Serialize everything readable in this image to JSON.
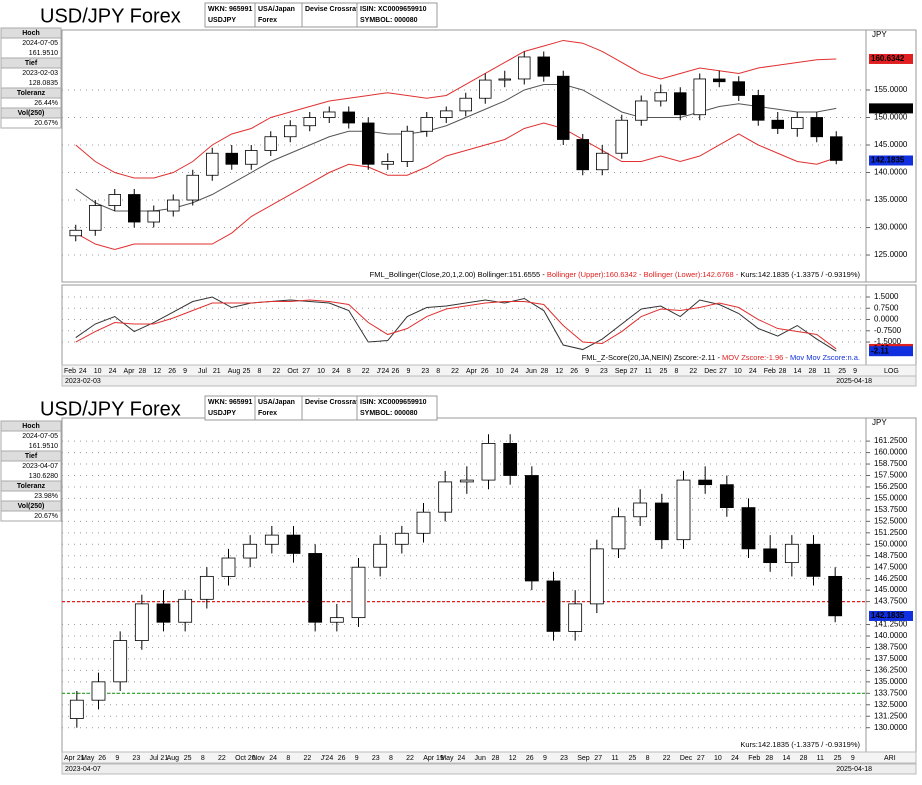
{
  "chart_data": [
    {
      "type": "candlestick",
      "header": {
        "title": "USD/JPY Forex",
        "cells": [
          [
            "WKN: 965991",
            "USDJPY"
          ],
          [
            "USA/Japan",
            "Forex"
          ],
          [
            "Devise Crossrate"
          ],
          [
            "ISIN: XC0009659910",
            "SYMBOL: 000080"
          ]
        ]
      },
      "info": [
        {
          "label": "Hoch",
          "values": [
            "2024-07-05",
            "161.9510"
          ]
        },
        {
          "label": "Tief",
          "values": [
            "2023-02-03",
            "128.0835"
          ]
        },
        {
          "label": "Toleranz",
          "values": [
            "26.44%"
          ]
        },
        {
          "label": "Vol(250)",
          "values": [
            "20.67%"
          ]
        }
      ],
      "unit": "JPY",
      "ylim": [
        120.1,
        165.9
      ],
      "yticks": [
        {
          "value": 125,
          "label": "125.0000"
        },
        {
          "value": 130,
          "label": "130.0000"
        },
        {
          "value": 135,
          "label": "135.0000"
        },
        {
          "value": 140,
          "label": "140.0000"
        },
        {
          "value": 145,
          "label": "145.0000"
        },
        {
          "value": 150,
          "label": "150.0000"
        },
        {
          "value": 155,
          "label": "155.0000"
        }
      ],
      "grid": true,
      "ohlc": [
        [
          128.5,
          130.5,
          127.5,
          129.5
        ],
        [
          129.5,
          135,
          128.5,
          134
        ],
        [
          134,
          137,
          133,
          136
        ],
        [
          136,
          137,
          130,
          131
        ],
        [
          131,
          134,
          130,
          133
        ],
        [
          133,
          136,
          132,
          135
        ],
        [
          135,
          140.5,
          134,
          139.5
        ],
        [
          139.5,
          144.5,
          138.5,
          143.5
        ],
        [
          143.5,
          145,
          140.5,
          141.5
        ],
        [
          141.5,
          145,
          140.5,
          144
        ],
        [
          144,
          147.5,
          143,
          146.5
        ],
        [
          146.5,
          149.5,
          145.5,
          148.5
        ],
        [
          148.5,
          151,
          147.5,
          150
        ],
        [
          150,
          152,
          149,
          151
        ],
        [
          151,
          152,
          148,
          149
        ],
        [
          149,
          150,
          140.5,
          141.5
        ],
        [
          141.5,
          143.5,
          140.5,
          142
        ],
        [
          142,
          148.5,
          141,
          147.5
        ],
        [
          147.5,
          151,
          146.5,
          150
        ],
        [
          150,
          152,
          149,
          151.2
        ],
        [
          151.2,
          154.5,
          150.2,
          153.5
        ],
        [
          153.5,
          158,
          152.5,
          156.8
        ],
        [
          156.8,
          158.5,
          155.5,
          157
        ],
        [
          157,
          162,
          156,
          161
        ],
        [
          161,
          162,
          156.5,
          157.5
        ],
        [
          157.5,
          158.5,
          145,
          146
        ],
        [
          146,
          147,
          139.5,
          140.5
        ],
        [
          140.5,
          145,
          139.5,
          143.5
        ],
        [
          143.5,
          150.5,
          142.5,
          149.5
        ],
        [
          149.5,
          154,
          148.5,
          153
        ],
        [
          153,
          156,
          152,
          154.5
        ],
        [
          154.5,
          155.5,
          149.5,
          150.5
        ],
        [
          150.5,
          158,
          149.5,
          157
        ],
        [
          157,
          158.5,
          155.5,
          156.5
        ],
        [
          156.5,
          157.5,
          153,
          154
        ],
        [
          154,
          155,
          148.5,
          149.5
        ],
        [
          149.5,
          151,
          147,
          148
        ],
        [
          148,
          151,
          146.5,
          150
        ],
        [
          150,
          151,
          145.5,
          146.5
        ],
        [
          146.5,
          147.5,
          141.5,
          142.2
        ]
      ],
      "series": [
        {
          "name": "Bollinger",
          "color": "#555555",
          "values": [
            137,
            134.5,
            133,
            133,
            133,
            133.5,
            134.5,
            136,
            138,
            140,
            142,
            143.5,
            145,
            146.5,
            147.5,
            147.5,
            147,
            147,
            147.5,
            148.5,
            150,
            151.5,
            153,
            155,
            156,
            156,
            155,
            153,
            151,
            150,
            150,
            150,
            151,
            152,
            152.5,
            152,
            151.5,
            151,
            151,
            151.66
          ]
        },
        {
          "name": "Bollinger (Upper)",
          "color": "#e03030",
          "values": [
            145,
            142,
            140,
            139,
            139,
            140,
            142,
            145,
            147,
            148,
            150,
            151,
            152,
            153,
            153.5,
            154,
            154.5,
            154,
            153.5,
            154,
            156,
            158,
            160,
            162,
            163,
            164,
            163.5,
            162,
            160,
            158,
            157,
            158,
            159,
            158.5,
            158,
            159,
            159.5,
            160,
            160.5,
            160.63
          ]
        },
        {
          "name": "Bollinger (Lower)",
          "color": "#e03030",
          "values": [
            129,
            127,
            126,
            127,
            127,
            127,
            127,
            127,
            129,
            132,
            134,
            136,
            138,
            140,
            141.5,
            141,
            139.5,
            139.5,
            141,
            143,
            144,
            145,
            146,
            148,
            149,
            148,
            146,
            144,
            142,
            142,
            143,
            142,
            143,
            145,
            147,
            145,
            143.5,
            142,
            141.5,
            142.68
          ]
        }
      ],
      "price_tags": [
        {
          "value": 160.6342,
          "color": "#e02020",
          "text_color": "#ffffff"
        },
        {
          "value": 151.6555,
          "color": "#000000",
          "text_color": "#ffffff"
        },
        {
          "value": 142.1835,
          "color": "#1030e0",
          "text_color": "#ffffff"
        }
      ],
      "status": [
        {
          "text": "FML_Bollinger(Close,20,1,2.00) Bollinger:151.6555 - ",
          "color": "#000000"
        },
        {
          "text": "Bollinger (Upper):160.6342 - ",
          "color": "#e02020"
        },
        {
          "text": "Bollinger (Lower):142.6768 - ",
          "color": "#e02020"
        },
        {
          "text": "Kurs:142.1835 (-1.3375 / -0.9319%)",
          "color": "#000000"
        }
      ]
    },
    {
      "type": "line",
      "ylim": [
        -3.03,
        2.3
      ],
      "yticks": [
        {
          "value": 1.5,
          "label": "1.5000"
        },
        {
          "value": 0.75,
          "label": "0.7500"
        },
        {
          "value": 0,
          "label": "0.0000"
        },
        {
          "value": -0.75,
          "label": "-0.7500"
        },
        {
          "value": -1.5,
          "label": "-1.5000"
        }
      ],
      "grid": true,
      "series": [
        {
          "name": "Zscore",
          "color": "#333333",
          "values": [
            -1.2,
            -0.3,
            0.2,
            -0.8,
            -0.2,
            0.5,
            1.2,
            1.5,
            0.8,
            1.1,
            1.2,
            1.3,
            1.2,
            1.1,
            0.6,
            -1.5,
            -1.4,
            0.2,
            0.8,
            0.9,
            1.1,
            1.3,
            1.1,
            1.4,
            0.6,
            -1.7,
            -2.0,
            -1.3,
            -0.3,
            0.7,
            0.9,
            0.2,
            1.3,
            1.0,
            0.4,
            -0.6,
            -1.1,
            -0.4,
            -1.3,
            -2.11
          ]
        },
        {
          "name": "MOV Zscore",
          "color": "#e03030",
          "values": [
            -1.5,
            -0.8,
            -0.2,
            -0.3,
            -0.3,
            0.1,
            0.6,
            1.1,
            1.1,
            1.1,
            1.2,
            1.2,
            1.3,
            1.2,
            1.0,
            -0.2,
            -1.0,
            -0.6,
            0.2,
            0.7,
            0.9,
            1.1,
            1.2,
            1.2,
            1.0,
            -0.4,
            -1.5,
            -1.6,
            -0.8,
            0.2,
            0.7,
            0.6,
            0.8,
            1.1,
            0.8,
            0.0,
            -0.6,
            -0.8,
            -1.0,
            -1.96
          ]
        }
      ],
      "price_tags": [
        {
          "value": -1.96,
          "color": "#e02020",
          "text_color": "#ffffff"
        },
        {
          "value": -2.11,
          "color": "#1030e0",
          "text_color": "#ffffff"
        }
      ],
      "status": [
        {
          "text": "FML_Z-Score(20,JA,NEIN) Zscore:-2.11 - ",
          "color": "#000000"
        },
        {
          "text": "MOV Zscore:-1.96 - ",
          "color": "#e02020"
        },
        {
          "text": "Mov Mov Zscore:n.a.",
          "color": "#1030e0"
        }
      ],
      "x_labels": [
        "Feb",
        "24",
        "10",
        "24",
        "Apr",
        "28",
        "12",
        "26",
        "9",
        "Jul",
        "21",
        "Aug",
        "25",
        "8",
        "22",
        "Oct",
        "27",
        "10",
        "24",
        "8",
        "22",
        "J'24",
        "26",
        "9",
        "23",
        "8",
        "22",
        "Apr",
        "26",
        "10",
        "24",
        "Jun",
        "28",
        "12",
        "26",
        "9",
        "23",
        "Sep",
        "27",
        "11",
        "25",
        "8",
        "22",
        "Dec",
        "27",
        "10",
        "24",
        "Feb",
        "28",
        "14",
        "28",
        "11",
        "25",
        "9"
      ],
      "range": [
        "2023-02-03",
        "2025-04-18"
      ],
      "scale_mode": "LOG"
    },
    {
      "type": "candlestick",
      "header": {
        "title": "USD/JPY Forex",
        "cells": [
          [
            "WKN: 965991",
            "USDJPY"
          ],
          [
            "USA/Japan",
            "Forex"
          ],
          [
            "Devise Crossrate"
          ],
          [
            "ISIN: XC0009659910",
            "SYMBOL: 000080"
          ]
        ]
      },
      "info": [
        {
          "label": "Hoch",
          "values": [
            "2024-07-05",
            "161.9510"
          ]
        },
        {
          "label": "Tief",
          "values": [
            "2023-04-07",
            "130.6280"
          ]
        },
        {
          "label": "Toleranz",
          "values": [
            "23.98%"
          ]
        },
        {
          "label": "Vol(250)",
          "values": [
            "20.67%"
          ]
        }
      ],
      "unit": "JPY",
      "ylim": [
        127.35,
        163.77
      ],
      "yticks": [
        {
          "value": 130,
          "label": "130.0000"
        },
        {
          "value": 131.25,
          "label": "131.2500"
        },
        {
          "value": 132.5,
          "label": "132.5000"
        },
        {
          "value": 133.75,
          "label": "133.7500"
        },
        {
          "value": 135,
          "label": "135.0000"
        },
        {
          "value": 136.25,
          "label": "136.2500"
        },
        {
          "value": 137.5,
          "label": "137.5000"
        },
        {
          "value": 138.75,
          "label": "138.7500"
        },
        {
          "value": 140,
          "label": "140.0000"
        },
        {
          "value": 141.25,
          "label": "141.2500"
        },
        {
          "value": 143.75,
          "label": "143.7500"
        },
        {
          "value": 145,
          "label": "145.0000"
        },
        {
          "value": 146.25,
          "label": "146.2500"
        },
        {
          "value": 147.5,
          "label": "147.5000"
        },
        {
          "value": 148.75,
          "label": "148.7500"
        },
        {
          "value": 150,
          "label": "150.0000"
        },
        {
          "value": 151.25,
          "label": "151.2500"
        },
        {
          "value": 152.5,
          "label": "152.5000"
        },
        {
          "value": 153.75,
          "label": "153.7500"
        },
        {
          "value": 155,
          "label": "155.0000"
        },
        {
          "value": 156.25,
          "label": "156.2500"
        },
        {
          "value": 157.5,
          "label": "157.5000"
        },
        {
          "value": 158.75,
          "label": "158.7500"
        },
        {
          "value": 160,
          "label": "160.0000"
        },
        {
          "value": 161.25,
          "label": "161.2500"
        }
      ],
      "grid": true,
      "ohlc": [
        [
          131,
          134,
          130,
          133
        ],
        [
          133,
          136,
          132,
          135
        ],
        [
          135,
          140.5,
          134,
          139.5
        ],
        [
          139.5,
          144.5,
          138.5,
          143.5
        ],
        [
          143.5,
          145,
          140.5,
          141.5
        ],
        [
          141.5,
          145,
          140.5,
          144
        ],
        [
          144,
          147.5,
          143,
          146.5
        ],
        [
          146.5,
          149.5,
          145.5,
          148.5
        ],
        [
          148.5,
          151,
          147.5,
          150
        ],
        [
          150,
          152,
          149,
          151
        ],
        [
          151,
          152,
          148,
          149
        ],
        [
          149,
          150,
          140.5,
          141.5
        ],
        [
          141.5,
          143.5,
          140.5,
          142
        ],
        [
          142,
          148.5,
          141,
          147.5
        ],
        [
          147.5,
          151,
          146.5,
          150
        ],
        [
          150,
          152,
          149,
          151.2
        ],
        [
          151.2,
          154.5,
          150.2,
          153.5
        ],
        [
          153.5,
          158,
          152.5,
          156.8
        ],
        [
          156.8,
          158.5,
          155.5,
          157
        ],
        [
          157,
          162,
          156,
          161
        ],
        [
          161,
          162,
          156.5,
          157.5
        ],
        [
          157.5,
          158.5,
          145,
          146
        ],
        [
          146,
          147,
          139.5,
          140.5
        ],
        [
          140.5,
          145,
          139.5,
          143.5
        ],
        [
          143.5,
          150.5,
          142.5,
          149.5
        ],
        [
          149.5,
          154,
          148.5,
          153
        ],
        [
          153,
          156,
          152,
          154.5
        ],
        [
          154.5,
          155.5,
          149.5,
          150.5
        ],
        [
          150.5,
          158,
          149.5,
          157
        ],
        [
          157,
          158.5,
          155.5,
          156.5
        ],
        [
          156.5,
          157.5,
          153,
          154
        ],
        [
          154,
          155,
          148.5,
          149.5
        ],
        [
          149.5,
          151,
          147,
          148
        ],
        [
          148,
          151,
          146.5,
          150
        ],
        [
          150,
          151,
          145.5,
          146.5
        ],
        [
          146.5,
          147.5,
          141.5,
          142.2
        ]
      ],
      "ref_lines": [
        {
          "value": 143.75,
          "color": "#e02020"
        },
        {
          "value": 133.75,
          "color": "#20a020"
        }
      ],
      "price_tags": [
        {
          "value": 142.1835,
          "color": "#1030e0",
          "text_color": "#ffffff"
        }
      ],
      "status": [
        {
          "text": "Kurs:142.1835 (-1.3375 / -0.9319%)",
          "color": "#000000"
        }
      ],
      "x_labels": [
        "Apr 21",
        "May",
        "26",
        "9",
        "23",
        "Jul 21",
        "Aug",
        "25",
        "8",
        "22",
        "Oct 20",
        "Nov",
        "24",
        "8",
        "22",
        "J'24",
        "26",
        "9",
        "23",
        "8",
        "22",
        "Apr 19",
        "May",
        "24",
        "Jun",
        "28",
        "12",
        "26",
        "9",
        "23",
        "Sep",
        "27",
        "11",
        "25",
        "8",
        "22",
        "Dec",
        "27",
        "10",
        "24",
        "Feb",
        "28",
        "14",
        "28",
        "11",
        "25",
        "9"
      ],
      "range": [
        "2023-04-07",
        "2025-04-18"
      ],
      "scale_mode": "ARI"
    }
  ]
}
